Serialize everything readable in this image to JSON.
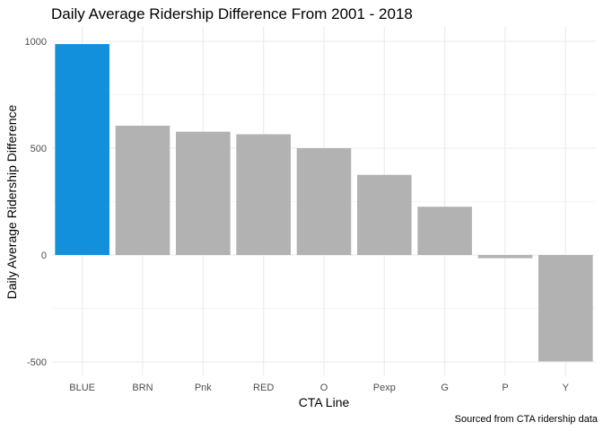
{
  "chart_data": {
    "type": "bar",
    "title": "Daily Average Ridership Difference From 2001 - 2018",
    "xlabel": "CTA Line",
    "ylabel": "Daily Average Ridership Difference",
    "caption": "Sourced from CTA ridership data",
    "categories": [
      "BLUE",
      "BRN",
      "Pnk",
      "RED",
      "O",
      "Pexp",
      "G",
      "P",
      "Y"
    ],
    "values": [
      987,
      605,
      577,
      565,
      500,
      375,
      226,
      -15,
      -498
    ],
    "highlight": "BLUE",
    "y_ticks": [
      -500,
      0,
      500,
      1000
    ],
    "ylim": [
      -540,
      1060
    ],
    "grid": true,
    "colors": {
      "highlight": "#1390db",
      "default": "#b2b2b2",
      "grid": "#ebebeb"
    }
  }
}
